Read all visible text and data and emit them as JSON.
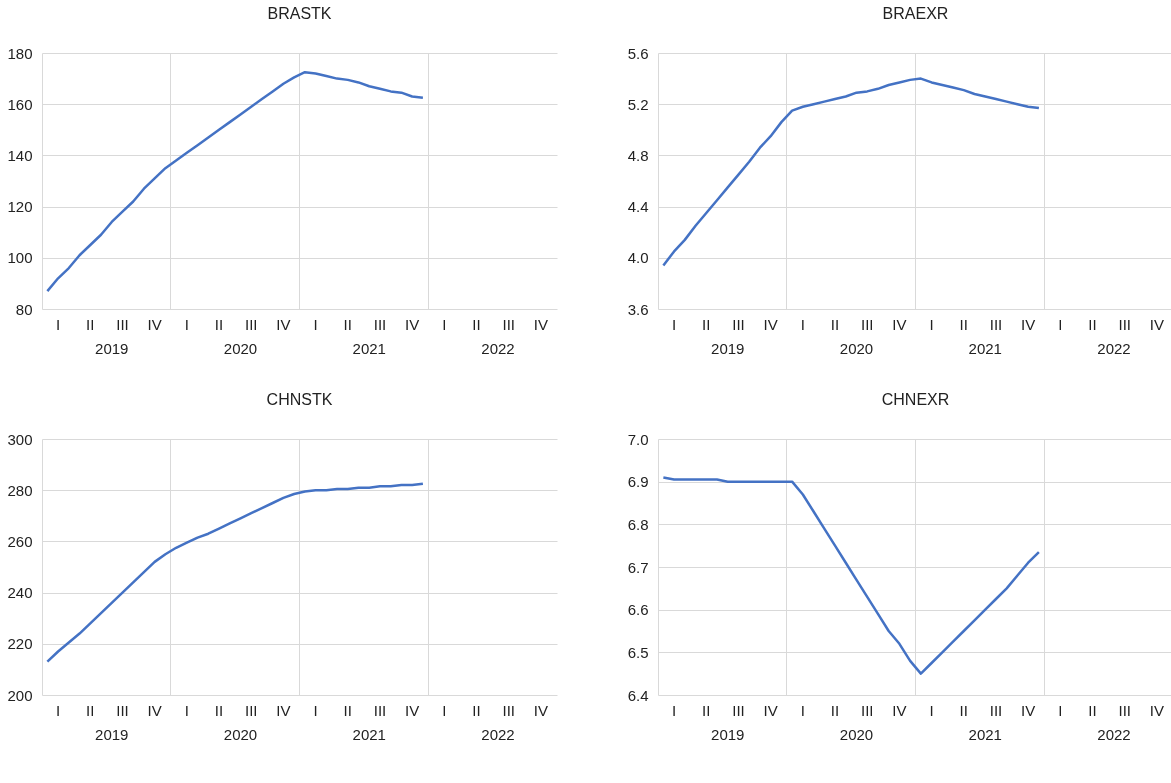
{
  "chart_data": [
    {
      "type": "line",
      "title": "BRASTK",
      "color": "#4472c4",
      "grid": true,
      "categories": [
        null,
        "I",
        null,
        null,
        "II",
        null,
        "2019",
        "III",
        null,
        null,
        "IV",
        null,
        null,
        "I",
        null,
        null,
        "II",
        null,
        "2020",
        "III",
        null,
        null,
        "IV",
        null,
        null,
        "I",
        null,
        null,
        "II",
        null,
        "2021",
        "III",
        null,
        null,
        "IV",
        null,
        null,
        "I",
        null,
        null,
        "II",
        null,
        "2022",
        "III",
        null,
        null,
        "IV",
        null
      ],
      "values": [
        87,
        92,
        96,
        101,
        105,
        109,
        114,
        118,
        122,
        127,
        131,
        135,
        138,
        141,
        144,
        147,
        150,
        153,
        156,
        159,
        162,
        165,
        168,
        170.5,
        172.5,
        172,
        171,
        170,
        169.5,
        168.5,
        167,
        166,
        165,
        164.5,
        163,
        162.5,
        null,
        null,
        null,
        null,
        null,
        null,
        null,
        null,
        null,
        null,
        null,
        null
      ],
      "ylim": [
        80,
        180
      ],
      "yticks": [
        80,
        100,
        120,
        140,
        160,
        180
      ]
    },
    {
      "type": "line",
      "title": "BRAEXR",
      "color": "#4472c4",
      "grid": true,
      "categories": [
        null,
        "I",
        null,
        null,
        "II",
        null,
        "2019",
        "III",
        null,
        null,
        "IV",
        null,
        null,
        "I",
        null,
        null,
        "II",
        null,
        "2020",
        "III",
        null,
        null,
        "IV",
        null,
        null,
        "I",
        null,
        null,
        "II",
        null,
        "2021",
        "III",
        null,
        null,
        "IV",
        null,
        null,
        "I",
        null,
        null,
        "II",
        null,
        "2022",
        "III",
        null,
        null,
        "IV",
        null
      ],
      "values": [
        3.94,
        4.05,
        4.14,
        4.25,
        4.35,
        4.45,
        4.55,
        4.65,
        4.75,
        4.86,
        4.95,
        5.06,
        5.15,
        5.18,
        5.2,
        5.22,
        5.24,
        5.26,
        5.29,
        5.3,
        5.32,
        5.35,
        5.37,
        5.39,
        5.4,
        5.37,
        5.35,
        5.33,
        5.31,
        5.28,
        5.26,
        5.24,
        5.22,
        5.2,
        5.18,
        5.17,
        null,
        null,
        null,
        null,
        null,
        null,
        null,
        null,
        null,
        null,
        null,
        null
      ],
      "ylim": [
        3.6,
        5.6
      ],
      "yticks": [
        3.6,
        {
          "value": 4,
          "label": "4.0"
        },
        4.4,
        4.8,
        5.2,
        5.6
      ]
    },
    {
      "type": "line",
      "title": "CHNSTK",
      "color": "#4472c4",
      "grid": true,
      "categories": [
        null,
        "I",
        null,
        null,
        "II",
        null,
        "2019",
        "III",
        null,
        null,
        "IV",
        null,
        null,
        "I",
        null,
        null,
        "II",
        null,
        "2020",
        "III",
        null,
        null,
        "IV",
        null,
        null,
        "I",
        null,
        null,
        "II",
        null,
        "2021",
        "III",
        null,
        null,
        "IV",
        null,
        null,
        "I",
        null,
        null,
        "II",
        null,
        "2022",
        "III",
        null,
        null,
        "IV",
        null
      ],
      "values": [
        213,
        217,
        220.5,
        224,
        228,
        232,
        236,
        240,
        244,
        248,
        252,
        255,
        257.5,
        259.5,
        261.5,
        263,
        265,
        267,
        269,
        271,
        273,
        275,
        277,
        278.5,
        279.5,
        280,
        280,
        280.5,
        280.5,
        281,
        281,
        281.5,
        281.5,
        282,
        282,
        282.5,
        null,
        null,
        null,
        null,
        null,
        null,
        null,
        null,
        null,
        null,
        null,
        null
      ],
      "ylim": [
        200,
        300
      ],
      "yticks": [
        200,
        220,
        240,
        260,
        280,
        300
      ]
    },
    {
      "type": "line",
      "title": "CHNEXR",
      "color": "#4472c4",
      "grid": true,
      "categories": [
        null,
        "I",
        null,
        null,
        "II",
        null,
        "2019",
        "III",
        null,
        null,
        "IV",
        null,
        null,
        "I",
        null,
        null,
        "II",
        null,
        "2020",
        "III",
        null,
        null,
        "IV",
        null,
        null,
        "I",
        null,
        null,
        "II",
        null,
        "2021",
        "III",
        null,
        null,
        "IV",
        null,
        null,
        "I",
        null,
        null,
        "II",
        null,
        "2022",
        "III",
        null,
        null,
        "IV",
        null
      ],
      "values": [
        6.91,
        6.905,
        6.905,
        6.905,
        6.905,
        6.905,
        6.9,
        6.9,
        6.9,
        6.9,
        6.9,
        6.9,
        6.9,
        6.87,
        6.83,
        6.79,
        6.75,
        6.71,
        6.67,
        6.63,
        6.59,
        6.55,
        6.52,
        6.48,
        6.45,
        6.475,
        6.5,
        6.525,
        6.55,
        6.575,
        6.6,
        6.625,
        6.65,
        6.68,
        6.71,
        6.735,
        null,
        null,
        null,
        null,
        null,
        null,
        null,
        null,
        null,
        null,
        null,
        null
      ],
      "ylim": [
        6.4,
        7.0
      ],
      "yticks": [
        6.4,
        6.5,
        6.6,
        6.7,
        6.8,
        6.9,
        {
          "value": 7,
          "label": "7.0"
        }
      ]
    }
  ]
}
